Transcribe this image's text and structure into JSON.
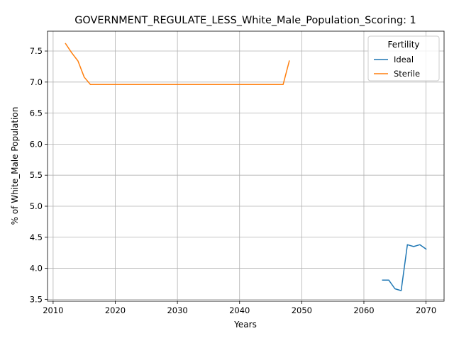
{
  "chart_data": {
    "type": "line",
    "title": "GOVERNMENT_REGULATE_LESS_White_Male_Population_Scoring: 1",
    "xlabel": "Years",
    "ylabel": "% of White_Male Population",
    "xlim": [
      2009.1,
      2072.9
    ],
    "ylim": [
      3.47,
      7.82
    ],
    "xticks": [
      2010,
      2020,
      2030,
      2040,
      2050,
      2060,
      2070
    ],
    "yticks": [
      3.5,
      4.0,
      4.5,
      5.0,
      5.5,
      6.0,
      6.5,
      7.0,
      7.5
    ],
    "grid": true,
    "legend": {
      "title": "Fertility",
      "placement": "top-right",
      "entries": [
        "Ideal",
        "Sterile"
      ]
    },
    "series": [
      {
        "name": "Ideal",
        "color": "#1f77b4",
        "x": [
          2063,
          2064,
          2065,
          2066,
          2067,
          2068,
          2069,
          2070
        ],
        "values": [
          3.81,
          3.81,
          3.67,
          3.64,
          4.38,
          4.35,
          4.38,
          4.31
        ]
      },
      {
        "name": "Sterile",
        "color": "#ff7f0e",
        "x": [
          2012,
          2013,
          2014,
          2015,
          2016,
          2017,
          2018,
          2019,
          2020,
          2021,
          2022,
          2023,
          2024,
          2025,
          2026,
          2027,
          2028,
          2029,
          2030,
          2031,
          2032,
          2033,
          2034,
          2035,
          2036,
          2037,
          2038,
          2039,
          2040,
          2041,
          2042,
          2043,
          2044,
          2045,
          2046,
          2047,
          2048
        ],
        "values": [
          7.62,
          7.47,
          7.34,
          7.08,
          6.96,
          6.96,
          6.96,
          6.96,
          6.96,
          6.96,
          6.96,
          6.96,
          6.96,
          6.96,
          6.96,
          6.96,
          6.96,
          6.96,
          6.96,
          6.96,
          6.96,
          6.96,
          6.96,
          6.96,
          6.96,
          6.96,
          6.96,
          6.96,
          6.96,
          6.96,
          6.96,
          6.96,
          6.96,
          6.96,
          6.96,
          6.96,
          7.34
        ]
      }
    ]
  }
}
